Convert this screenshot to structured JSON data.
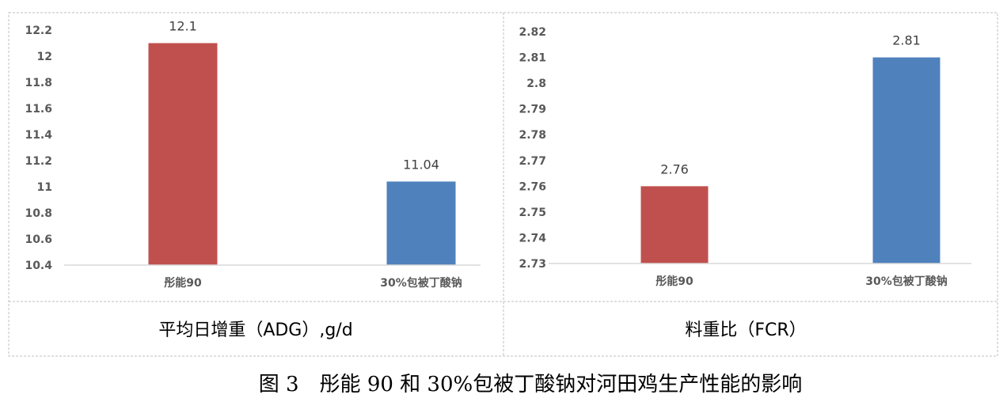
{
  "chart_data": [
    {
      "type": "bar",
      "title": "平均日增重（ADG）,g/d",
      "categories": [
        "彤能90",
        "30%包被丁酸钠"
      ],
      "values": [
        12.1,
        11.04
      ],
      "data_labels": [
        "12.1",
        "11.04"
      ],
      "colors": [
        "#C0504D",
        "#4F81BD"
      ],
      "ylim": [
        10.4,
        12.2
      ],
      "yticks": [
        "10.4",
        "10.6",
        "10.8",
        "11",
        "11.2",
        "11.4",
        "11.6",
        "11.8",
        "12",
        "12.2"
      ],
      "grid": false
    },
    {
      "type": "bar",
      "title": "料重比（FCR）",
      "categories": [
        "彤能90",
        "30%包被丁酸钠"
      ],
      "values": [
        2.76,
        2.81
      ],
      "data_labels": [
        "2.76",
        "2.81"
      ],
      "colors": [
        "#C0504D",
        "#4F81BD"
      ],
      "ylim": [
        2.73,
        2.82
      ],
      "yticks": [
        "2.73",
        "2.74",
        "2.75",
        "2.76",
        "2.77",
        "2.78",
        "2.79",
        "2.8",
        "2.81",
        "2.82"
      ],
      "grid": false
    }
  ],
  "caption": "图 3　彤能 90 和 30%包被丁酸钠对河田鸡生产性能的影响"
}
